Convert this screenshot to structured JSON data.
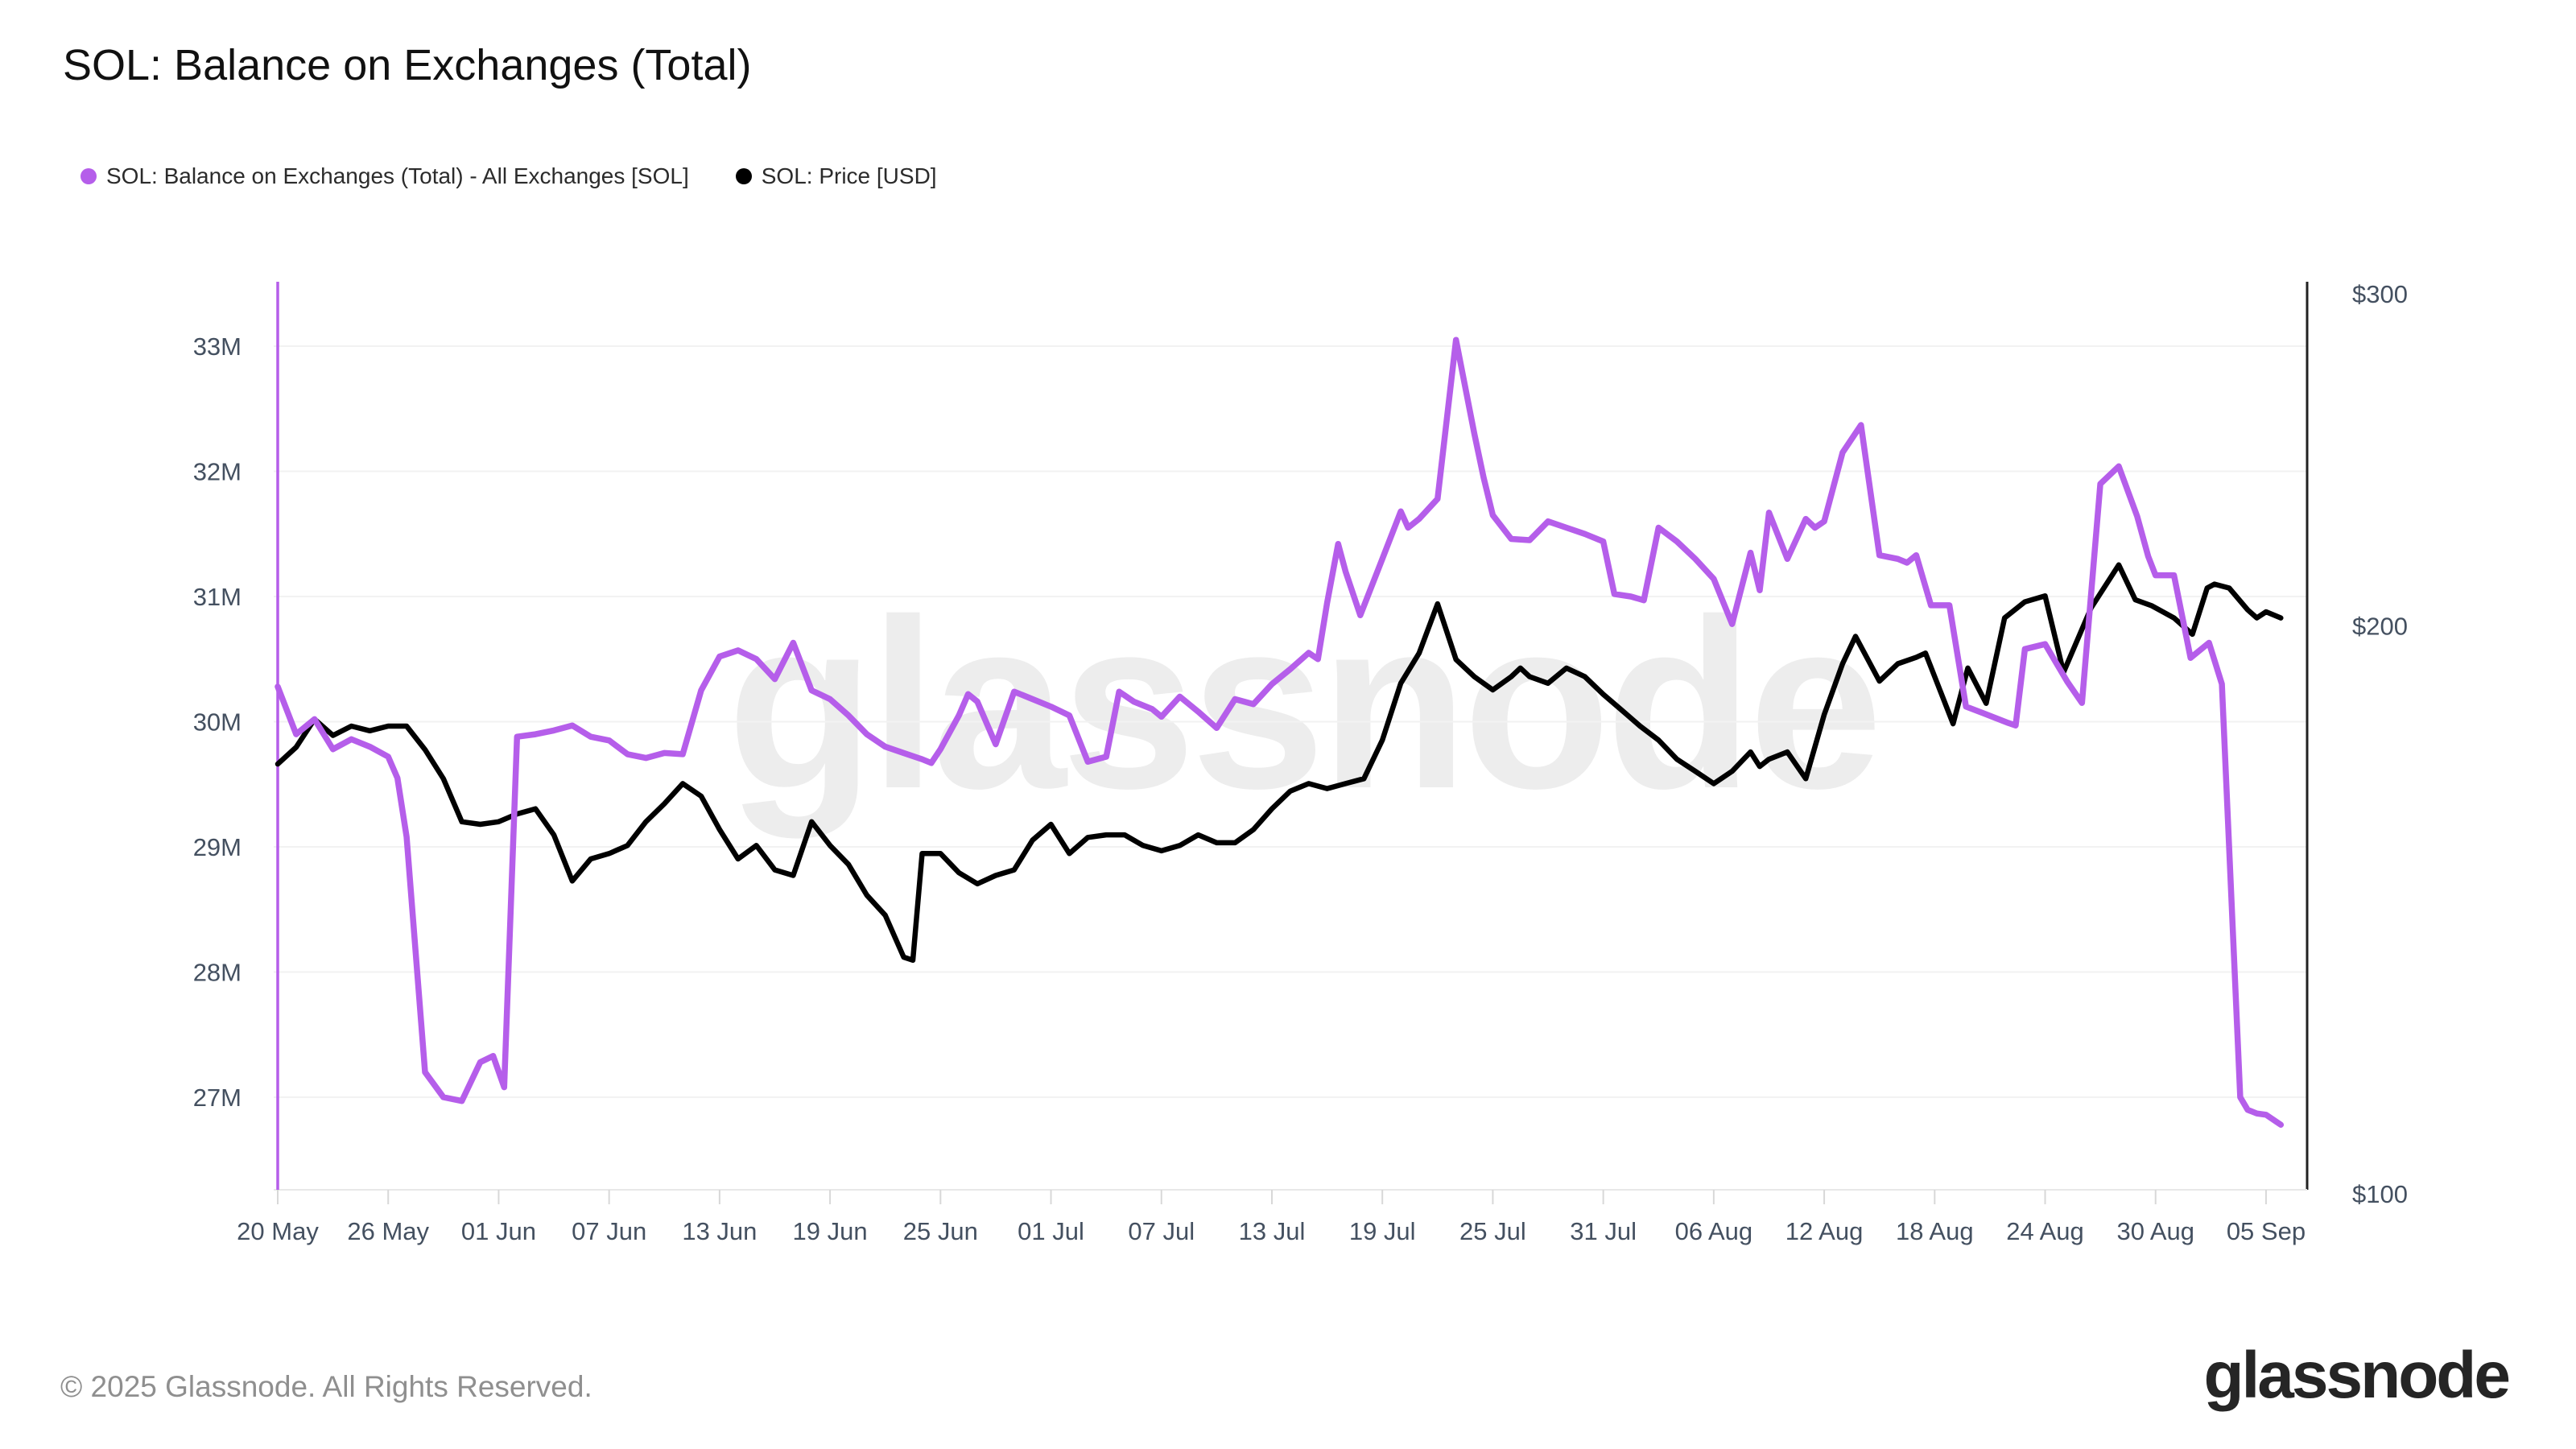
{
  "title": "SOL: Balance on Exchanges (Total)",
  "legend": [
    {
      "label": "SOL: Balance on Exchanges (Total) - All Exchanges [SOL]",
      "color": "#b55eea"
    },
    {
      "label": "SOL: Price [USD]",
      "color": "#000000"
    }
  ],
  "watermark": "glassnode",
  "footer": {
    "copyright": "© 2025 Glassnode. All Rights Reserved.",
    "logo": "glassnode"
  },
  "colors": {
    "balance_line": "#b55eea",
    "price_line": "#000000",
    "axis_text": "#445060",
    "gridline": "#f2f2f2",
    "right_axis_line": "#222222",
    "bottom_axis_line": "#e8e8e8",
    "tick_mark": "#d8d8d8",
    "watermark": "#ededed"
  },
  "chart_data": {
    "type": "line",
    "title": "SOL: Balance on Exchanges (Total)",
    "x_unit": "days since 20 May",
    "x_ticks": [
      {
        "label": "20 May",
        "day": 0
      },
      {
        "label": "26 May",
        "day": 6
      },
      {
        "label": "01 Jun",
        "day": 12
      },
      {
        "label": "07 Jun",
        "day": 18
      },
      {
        "label": "13 Jun",
        "day": 24
      },
      {
        "label": "19 Jun",
        "day": 30
      },
      {
        "label": "25 Jun",
        "day": 36
      },
      {
        "label": "01 Jul",
        "day": 42
      },
      {
        "label": "07 Jul",
        "day": 48
      },
      {
        "label": "13 Jul",
        "day": 54
      },
      {
        "label": "19 Jul",
        "day": 60
      },
      {
        "label": "25 Jul",
        "day": 66
      },
      {
        "label": "31 Jul",
        "day": 72
      },
      {
        "label": "06 Aug",
        "day": 78
      },
      {
        "label": "12 Aug",
        "day": 84
      },
      {
        "label": "18 Aug",
        "day": 90
      },
      {
        "label": "24 Aug",
        "day": 96
      },
      {
        "label": "30 Aug",
        "day": 102
      },
      {
        "label": "05 Sep",
        "day": 108
      }
    ],
    "left_axis": {
      "unit": "SOL balance (millions)",
      "scale": "linear",
      "ticks": [
        33,
        32,
        31,
        30,
        29,
        28,
        27
      ],
      "label_suffix": "M",
      "range_shown": [
        27,
        33
      ]
    },
    "right_axis": {
      "unit": "USD",
      "scale": "log",
      "ticks": [
        300,
        200,
        100
      ],
      "label_prefix": "$",
      "range_shown": [
        100,
        300
      ]
    },
    "grid": "horizontal-only",
    "legend_position": "top-left",
    "left_edge_vertical_line": true,
    "series": [
      {
        "name": "SOL: Balance on Exchanges (Total) - All Exchanges [SOL]",
        "color": "#b55eea",
        "axis": "left",
        "points": [
          [
            0,
            30.28
          ],
          [
            1,
            29.9
          ],
          [
            2,
            30.02
          ],
          [
            3,
            29.78
          ],
          [
            4,
            29.86
          ],
          [
            5,
            29.8
          ],
          [
            6,
            29.72
          ],
          [
            6.5,
            29.55
          ],
          [
            7,
            29.08
          ],
          [
            8,
            27.2
          ],
          [
            9,
            27.0
          ],
          [
            10,
            26.97
          ],
          [
            11,
            27.28
          ],
          [
            11.7,
            27.33
          ],
          [
            12.3,
            27.08
          ],
          [
            13,
            29.88
          ],
          [
            14,
            29.9
          ],
          [
            15,
            29.93
          ],
          [
            16,
            29.97
          ],
          [
            17,
            29.88
          ],
          [
            18,
            29.85
          ],
          [
            19,
            29.74
          ],
          [
            20,
            29.71
          ],
          [
            21,
            29.75
          ],
          [
            22,
            29.74
          ],
          [
            23,
            30.25
          ],
          [
            24,
            30.52
          ],
          [
            25,
            30.57
          ],
          [
            26,
            30.5
          ],
          [
            27,
            30.34
          ],
          [
            28,
            30.63
          ],
          [
            29,
            30.25
          ],
          [
            30,
            30.18
          ],
          [
            31,
            30.05
          ],
          [
            32,
            29.9
          ],
          [
            33,
            29.8
          ],
          [
            34,
            29.75
          ],
          [
            35,
            29.7
          ],
          [
            35.5,
            29.67
          ],
          [
            36,
            29.78
          ],
          [
            37,
            30.05
          ],
          [
            37.5,
            30.22
          ],
          [
            38,
            30.16
          ],
          [
            39,
            29.82
          ],
          [
            40,
            30.24
          ],
          [
            41,
            30.18
          ],
          [
            42,
            30.12
          ],
          [
            43,
            30.05
          ],
          [
            44,
            29.68
          ],
          [
            45,
            29.72
          ],
          [
            45.7,
            30.24
          ],
          [
            46.5,
            30.16
          ],
          [
            47.5,
            30.1
          ],
          [
            48,
            30.04
          ],
          [
            49,
            30.2
          ],
          [
            50,
            30.08
          ],
          [
            51,
            29.95
          ],
          [
            52,
            30.18
          ],
          [
            53,
            30.14
          ],
          [
            54,
            30.3
          ],
          [
            55,
            30.42
          ],
          [
            56,
            30.55
          ],
          [
            56.5,
            30.5
          ],
          [
            57,
            30.95
          ],
          [
            57.6,
            31.42
          ],
          [
            58,
            31.2
          ],
          [
            58.8,
            30.85
          ],
          [
            60,
            31.3
          ],
          [
            61,
            31.68
          ],
          [
            61.4,
            31.55
          ],
          [
            62,
            31.62
          ],
          [
            63,
            31.78
          ],
          [
            64,
            33.05
          ],
          [
            65,
            32.3
          ],
          [
            65.5,
            31.95
          ],
          [
            66,
            31.65
          ],
          [
            67,
            31.46
          ],
          [
            68,
            31.45
          ],
          [
            69,
            31.6
          ],
          [
            70,
            31.55
          ],
          [
            71,
            31.5
          ],
          [
            72,
            31.44
          ],
          [
            72.6,
            31.02
          ],
          [
            73.5,
            31.0
          ],
          [
            74.2,
            30.97
          ],
          [
            75,
            31.55
          ],
          [
            76,
            31.44
          ],
          [
            77,
            31.3
          ],
          [
            78,
            31.14
          ],
          [
            79,
            30.78
          ],
          [
            80,
            31.35
          ],
          [
            80.5,
            31.05
          ],
          [
            81,
            31.67
          ],
          [
            82,
            31.3
          ],
          [
            83,
            31.62
          ],
          [
            83.5,
            31.55
          ],
          [
            84,
            31.6
          ],
          [
            85,
            32.15
          ],
          [
            86,
            32.37
          ],
          [
            87,
            31.33
          ],
          [
            88,
            31.3
          ],
          [
            88.5,
            31.27
          ],
          [
            89,
            31.33
          ],
          [
            89.8,
            30.93
          ],
          [
            90.8,
            30.93
          ],
          [
            91.7,
            30.12
          ],
          [
            92.6,
            30.07
          ],
          [
            94,
            29.99
          ],
          [
            94.4,
            29.97
          ],
          [
            94.9,
            30.58
          ],
          [
            96,
            30.62
          ],
          [
            96.6,
            30.47
          ],
          [
            97.2,
            30.32
          ],
          [
            98,
            30.15
          ],
          [
            99,
            31.9
          ],
          [
            100,
            32.04
          ],
          [
            101,
            31.64
          ],
          [
            101.6,
            31.32
          ],
          [
            102,
            31.17
          ],
          [
            103,
            31.17
          ],
          [
            103.9,
            30.51
          ],
          [
            104.9,
            30.63
          ],
          [
            105.6,
            30.3
          ],
          [
            106.6,
            27.0
          ],
          [
            107,
            26.9
          ],
          [
            107.5,
            26.87
          ],
          [
            108,
            26.86
          ],
          [
            108.8,
            26.78
          ]
        ]
      },
      {
        "name": "SOL: Price [USD]",
        "color": "#000000",
        "axis": "right",
        "points": [
          [
            0,
            169
          ],
          [
            1,
            172.5
          ],
          [
            2,
            178.5
          ],
          [
            3,
            175
          ],
          [
            4,
            177
          ],
          [
            5,
            176
          ],
          [
            6,
            177
          ],
          [
            7,
            177
          ],
          [
            8,
            172
          ],
          [
            9,
            166
          ],
          [
            10,
            157.5
          ],
          [
            11,
            157
          ],
          [
            12,
            157.5
          ],
          [
            13,
            159
          ],
          [
            14,
            160
          ],
          [
            15,
            155
          ],
          [
            16,
            146.5
          ],
          [
            17,
            150.5
          ],
          [
            18,
            151.5
          ],
          [
            19,
            153
          ],
          [
            20,
            157.5
          ],
          [
            21,
            161
          ],
          [
            22,
            165
          ],
          [
            23,
            162.5
          ],
          [
            24,
            156
          ],
          [
            25,
            150.5
          ],
          [
            26,
            153
          ],
          [
            27,
            148.5
          ],
          [
            28,
            147.5
          ],
          [
            29,
            157.5
          ],
          [
            30,
            153
          ],
          [
            31,
            149.5
          ],
          [
            32,
            144
          ],
          [
            33,
            140.5
          ],
          [
            34,
            133.5
          ],
          [
            34.5,
            133
          ],
          [
            35,
            151.5
          ],
          [
            36,
            151.5
          ],
          [
            37,
            148
          ],
          [
            38,
            146
          ],
          [
            39,
            147.5
          ],
          [
            40,
            148.5
          ],
          [
            41,
            154
          ],
          [
            42,
            157
          ],
          [
            43,
            151.5
          ],
          [
            44,
            154.5
          ],
          [
            45,
            155
          ],
          [
            46,
            155
          ],
          [
            47,
            153
          ],
          [
            48,
            152
          ],
          [
            49,
            153
          ],
          [
            50,
            155
          ],
          [
            51,
            153.5
          ],
          [
            52,
            153.5
          ],
          [
            53,
            156
          ],
          [
            54,
            160
          ],
          [
            55,
            163.5
          ],
          [
            56,
            165
          ],
          [
            57,
            164
          ],
          [
            58,
            165
          ],
          [
            59,
            166
          ],
          [
            60,
            174
          ],
          [
            61,
            186.5
          ],
          [
            62,
            193.5
          ],
          [
            63,
            205.5
          ],
          [
            64,
            192
          ],
          [
            65,
            188
          ],
          [
            66,
            185
          ],
          [
            67,
            188
          ],
          [
            67.5,
            190
          ],
          [
            68,
            188
          ],
          [
            69,
            186.5
          ],
          [
            70,
            190
          ],
          [
            71,
            188
          ],
          [
            72,
            184
          ],
          [
            73,
            180.5
          ],
          [
            74,
            177
          ],
          [
            75,
            174
          ],
          [
            76,
            170
          ],
          [
            77,
            167.5
          ],
          [
            78,
            165
          ],
          [
            79,
            167.5
          ],
          [
            80,
            171.5
          ],
          [
            80.5,
            168.5
          ],
          [
            81,
            170
          ],
          [
            82,
            171.5
          ],
          [
            83,
            166
          ],
          [
            84,
            179.5
          ],
          [
            85,
            191
          ],
          [
            85.7,
            197.5
          ],
          [
            87,
            187
          ],
          [
            88,
            191
          ],
          [
            89,
            192.5
          ],
          [
            89.5,
            193.5
          ],
          [
            91,
            177.5
          ],
          [
            91.8,
            190
          ],
          [
            92.8,
            182
          ],
          [
            93.8,
            202
          ],
          [
            94.9,
            206
          ],
          [
            96,
            207.5
          ],
          [
            97,
            189
          ],
          [
            98.5,
            204.5
          ],
          [
            100,
            215.5
          ],
          [
            100.9,
            206.5
          ],
          [
            101.8,
            205
          ],
          [
            103,
            202
          ],
          [
            104,
            198
          ],
          [
            104.8,
            209.5
          ],
          [
            105.2,
            210.5
          ],
          [
            106,
            209.5
          ],
          [
            107,
            204
          ],
          [
            107.5,
            202
          ],
          [
            108,
            203.5
          ],
          [
            108.8,
            202
          ]
        ]
      }
    ]
  }
}
